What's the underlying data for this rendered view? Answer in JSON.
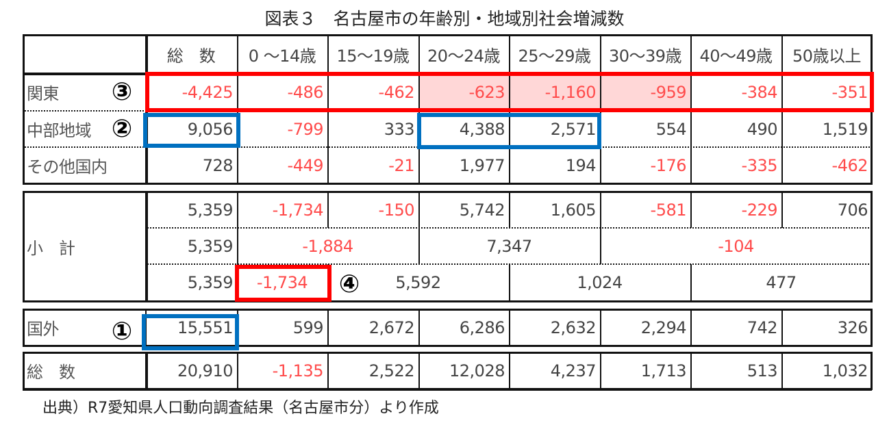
{
  "title": "図表３　名古屋市の年齢別・地域別社会増減数",
  "headers": [
    "総　数",
    "0 ～14歳",
    "15～19歳",
    "20～24歳",
    "25～29歳",
    "30～39歳",
    "40～49歳",
    "50歳以上"
  ],
  "rows": [
    {
      "label": "関東",
      "values": [
        "-4,425",
        "-486",
        "-462",
        "-623",
        "-1,160",
        "-959",
        "-384",
        "-351"
      ]
    },
    {
      "label": "中部地域",
      "values": [
        "9,056",
        "-799",
        "333",
        "4,388",
        "2,571",
        "554",
        "490",
        "1,519"
      ]
    },
    {
      "label": "その他国内",
      "values": [
        "728",
        "-449",
        "-21",
        "1,977",
        "194",
        "-176",
        "-335",
        "-462"
      ]
    }
  ],
  "subtotal": {
    "label": "小　計",
    "row1": [
      "5,359",
      "-1,734",
      "-150",
      "5,742",
      "1,605",
      "-581",
      "-229",
      "706"
    ],
    "row2": [
      "5,359",
      "-1,884",
      "7,347",
      "-104"
    ],
    "row3": [
      "5,359",
      "-1,734",
      "5,592",
      "1,024",
      "477"
    ]
  },
  "abroad": {
    "label": "国外",
    "values": [
      "15,551",
      "599",
      "2,672",
      "6,286",
      "2,632",
      "2,294",
      "742",
      "326"
    ]
  },
  "total": {
    "label": "総　数",
    "values": [
      "20,910",
      "-1,135",
      "2,522",
      "12,028",
      "4,237",
      "1,713",
      "513",
      "1,032"
    ]
  },
  "annotations": [
    "③",
    "②",
    "①",
    "④"
  ],
  "source": "出典）R7愛知県人口動向調査結果（名古屋市分）より作成",
  "colors": {
    "negative": "#ff4b4b",
    "highlight_red": "#ff0000",
    "highlight_blue": "#0070c0",
    "pink_fill": "#ffd7d7"
  }
}
